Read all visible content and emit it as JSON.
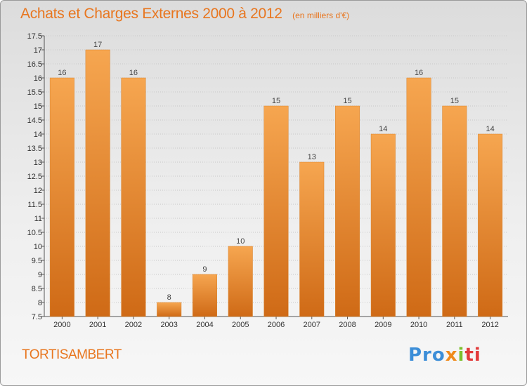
{
  "header": {
    "title": "Achats et Charges Externes 2000 à 2012",
    "subtitle": "(en milliers d'€)"
  },
  "footer": {
    "commune": "TORTISAMBERT",
    "logo_parts": [
      "Pro",
      "x",
      "i",
      "ti"
    ]
  },
  "colors": {
    "bar_light": "#f6a650",
    "bar_dark": "#cf6a16",
    "accent": "#e8761f"
  },
  "chart_data": {
    "type": "bar",
    "categories": [
      "2000",
      "2001",
      "2002",
      "2003",
      "2004",
      "2005",
      "2006",
      "2007",
      "2008",
      "2009",
      "2010",
      "2011",
      "2012"
    ],
    "values": [
      16,
      17,
      16,
      8,
      9,
      10,
      15,
      13,
      15,
      14,
      16,
      15,
      14
    ],
    "ylim": [
      7.5,
      17.5
    ],
    "yticks": [
      "7.5",
      "8",
      "8.5",
      "9",
      "9.5",
      "10",
      "10.5",
      "11",
      "11.5",
      "12",
      "12.5",
      "13",
      "13.5",
      "14",
      "14.5",
      "15",
      "15.5",
      "16",
      "16.5",
      "17",
      "17.5"
    ],
    "grid": true,
    "title": "Achats et Charges Externes 2000 à 2012",
    "xlabel": "",
    "ylabel": ""
  }
}
